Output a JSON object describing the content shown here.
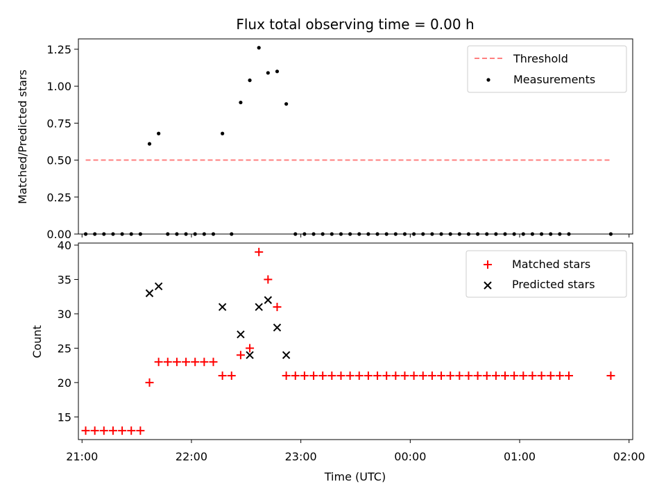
{
  "chart_data": [
    {
      "type": "scatter",
      "title": "Flux total observing time = 0.00 h",
      "ylabel": "Matched/Predicted stars",
      "xlabel": "",
      "xlim": [
        "20:58",
        "02:02"
      ],
      "ylim": [
        0,
        1.32
      ],
      "yticks": [
        "0.00",
        "0.25",
        "0.50",
        "0.75",
        "1.00",
        "1.25"
      ],
      "legend_position": "top-right",
      "threshold": {
        "name": "Threshold",
        "value": 0.5,
        "x_start": "21:02",
        "x_end": "01:50",
        "color": "#ff7f7f"
      },
      "series": [
        {
          "name": "Measurements",
          "color": "#000000",
          "points": [
            [
              "21:02",
              0
            ],
            [
              "21:07",
              0
            ],
            [
              "21:12",
              0
            ],
            [
              "21:17",
              0
            ],
            [
              "21:22",
              0
            ],
            [
              "21:27",
              0
            ],
            [
              "21:32",
              0
            ],
            [
              "21:37",
              0.61
            ],
            [
              "21:42",
              0.68
            ],
            [
              "21:47",
              0
            ],
            [
              "21:52",
              0
            ],
            [
              "21:57",
              0
            ],
            [
              "22:02",
              0
            ],
            [
              "22:07",
              0
            ],
            [
              "22:12",
              0
            ],
            [
              "22:17",
              0.68
            ],
            [
              "22:22",
              0
            ],
            [
              "22:27",
              0.89
            ],
            [
              "22:32",
              1.04
            ],
            [
              "22:37",
              1.26
            ],
            [
              "22:42",
              1.09
            ],
            [
              "22:47",
              1.1
            ],
            [
              "22:52",
              0.88
            ],
            [
              "22:57",
              0
            ],
            [
              "23:02",
              0
            ],
            [
              "23:07",
              0
            ],
            [
              "23:12",
              0
            ],
            [
              "23:17",
              0
            ],
            [
              "23:22",
              0
            ],
            [
              "23:27",
              0
            ],
            [
              "23:32",
              0
            ],
            [
              "23:37",
              0
            ],
            [
              "23:42",
              0
            ],
            [
              "23:47",
              0
            ],
            [
              "23:52",
              0
            ],
            [
              "23:57",
              0
            ],
            [
              "00:02",
              0
            ],
            [
              "00:07",
              0
            ],
            [
              "00:12",
              0
            ],
            [
              "00:17",
              0
            ],
            [
              "00:22",
              0
            ],
            [
              "00:27",
              0
            ],
            [
              "00:32",
              0
            ],
            [
              "00:37",
              0
            ],
            [
              "00:42",
              0
            ],
            [
              "00:47",
              0
            ],
            [
              "00:52",
              0
            ],
            [
              "00:57",
              0
            ],
            [
              "01:02",
              0
            ],
            [
              "01:07",
              0
            ],
            [
              "01:12",
              0
            ],
            [
              "01:17",
              0
            ],
            [
              "01:22",
              0
            ],
            [
              "01:27",
              0
            ],
            [
              "01:50",
              0
            ]
          ]
        }
      ]
    },
    {
      "type": "scatter",
      "title": "",
      "ylabel": "Count",
      "xlabel": "Time (UTC)",
      "xlim": [
        "20:58",
        "02:02"
      ],
      "ylim": [
        11.7,
        40.3
      ],
      "yticks": [
        "15",
        "20",
        "25",
        "30",
        "35",
        "40"
      ],
      "xticks": [
        "21:00",
        "22:00",
        "23:00",
        "00:00",
        "01:00",
        "02:00"
      ],
      "legend_position": "top-right",
      "series": [
        {
          "name": "Matched stars",
          "color": "#ff0000",
          "marker": "plus",
          "points": [
            [
              "21:02",
              13
            ],
            [
              "21:07",
              13
            ],
            [
              "21:12",
              13
            ],
            [
              "21:17",
              13
            ],
            [
              "21:22",
              13
            ],
            [
              "21:27",
              13
            ],
            [
              "21:32",
              13
            ],
            [
              "21:37",
              20
            ],
            [
              "21:42",
              23
            ],
            [
              "21:47",
              23
            ],
            [
              "21:52",
              23
            ],
            [
              "21:57",
              23
            ],
            [
              "22:02",
              23
            ],
            [
              "22:07",
              23
            ],
            [
              "22:12",
              23
            ],
            [
              "22:17",
              21
            ],
            [
              "22:22",
              21
            ],
            [
              "22:27",
              24
            ],
            [
              "22:32",
              25
            ],
            [
              "22:37",
              39
            ],
            [
              "22:42",
              35
            ],
            [
              "22:47",
              31
            ],
            [
              "22:52",
              21
            ],
            [
              "22:57",
              21
            ],
            [
              "23:02",
              21
            ],
            [
              "23:07",
              21
            ],
            [
              "23:12",
              21
            ],
            [
              "23:17",
              21
            ],
            [
              "23:22",
              21
            ],
            [
              "23:27",
              21
            ],
            [
              "23:32",
              21
            ],
            [
              "23:37",
              21
            ],
            [
              "23:42",
              21
            ],
            [
              "23:47",
              21
            ],
            [
              "23:52",
              21
            ],
            [
              "23:57",
              21
            ],
            [
              "00:02",
              21
            ],
            [
              "00:07",
              21
            ],
            [
              "00:12",
              21
            ],
            [
              "00:17",
              21
            ],
            [
              "00:22",
              21
            ],
            [
              "00:27",
              21
            ],
            [
              "00:32",
              21
            ],
            [
              "00:37",
              21
            ],
            [
              "00:42",
              21
            ],
            [
              "00:47",
              21
            ],
            [
              "00:52",
              21
            ],
            [
              "00:57",
              21
            ],
            [
              "01:02",
              21
            ],
            [
              "01:07",
              21
            ],
            [
              "01:12",
              21
            ],
            [
              "01:17",
              21
            ],
            [
              "01:22",
              21
            ],
            [
              "01:27",
              21
            ],
            [
              "01:50",
              21
            ]
          ]
        },
        {
          "name": "Predicted stars",
          "color": "#000000",
          "marker": "x",
          "points": [
            [
              "21:37",
              33
            ],
            [
              "21:42",
              34
            ],
            [
              "22:17",
              31
            ],
            [
              "22:27",
              27
            ],
            [
              "22:32",
              24
            ],
            [
              "22:37",
              31
            ],
            [
              "22:42",
              32
            ],
            [
              "22:47",
              28
            ],
            [
              "22:52",
              24
            ]
          ]
        }
      ]
    }
  ]
}
